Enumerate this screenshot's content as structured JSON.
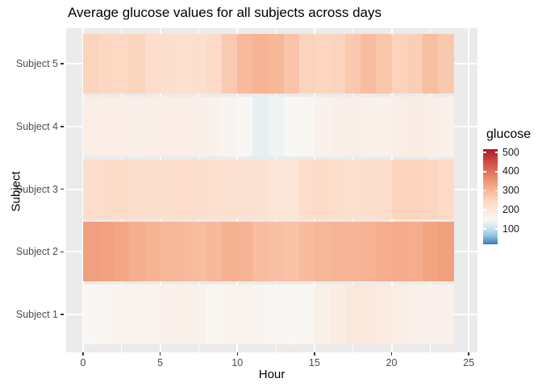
{
  "title": "Average glucose values for all subjects across days",
  "axes": {
    "x": {
      "label": "Hour",
      "tick_labels": [
        "0",
        "5",
        "10",
        "15",
        "20",
        "25"
      ],
      "tick_values": [
        0,
        5,
        10,
        15,
        20,
        25
      ]
    },
    "y": {
      "label": "Subject",
      "tick_labels": [
        "Subject 5",
        "Subject 4",
        "Subject 3",
        "Subject 2",
        "Subject 1"
      ]
    }
  },
  "legend": {
    "title": "glucose",
    "tick_labels": [
      "500",
      "400",
      "300",
      "200",
      "100"
    ],
    "tick_values": [
      500,
      400,
      300,
      200,
      100
    ]
  },
  "colors": {
    "panel_background": "#EBEBEB",
    "gridline": "#FFFFFF",
    "tick_mark": "#333333",
    "axis_text": "#4D4D4D",
    "high_red": "#B2182B",
    "low_blue": "#3E79B4"
  },
  "chart_data": {
    "type": "heatmap",
    "title": "Average glucose values for all subjects across days",
    "xlabel": "Hour",
    "ylabel": "Subject",
    "x_hours": [
      0,
      1,
      2,
      3,
      4,
      5,
      6,
      7,
      8,
      9,
      10,
      11,
      12,
      13,
      14,
      15,
      16,
      17,
      18,
      19,
      20,
      21,
      22,
      23
    ],
    "x_axis_range": [
      0,
      25
    ],
    "tile_span_hours": [
      0,
      24
    ],
    "rows_top_to_bottom": [
      {
        "subject": "Subject 5",
        "values": [
          252,
          246,
          245,
          250,
          232,
          228,
          220,
          225,
          240,
          268,
          295,
          305,
          300,
          278,
          252,
          248,
          252,
          270,
          290,
          275,
          252,
          262,
          288,
          272
        ]
      },
      {
        "subject": "Subject 4",
        "values": [
          182,
          180,
          178,
          176,
          178,
          180,
          178,
          175,
          168,
          160,
          152,
          132,
          140,
          150,
          158,
          168,
          175,
          178,
          172,
          170,
          182,
          185,
          178,
          172
        ]
      },
      {
        "subject": "Subject 3",
        "values": [
          230,
          234,
          236,
          228,
          226,
          228,
          230,
          226,
          222,
          220,
          216,
          218,
          210,
          205,
          232,
          238,
          230,
          222,
          226,
          232,
          250,
          253,
          248,
          240
        ]
      },
      {
        "subject": "Subject 2",
        "values": [
          338,
          334,
          326,
          314,
          305,
          300,
          296,
          292,
          296,
          310,
          306,
          292,
          286,
          283,
          293,
          299,
          304,
          301,
          309,
          316,
          320,
          316,
          332,
          335
        ]
      },
      {
        "subject": "Subject 1",
        "values": [
          152,
          158,
          162,
          160,
          165,
          170,
          172,
          168,
          158,
          162,
          165,
          160,
          156,
          152,
          156,
          172,
          186,
          198,
          200,
          190,
          178,
          170,
          168,
          172
        ]
      }
    ],
    "color_scale": {
      "name": "RdBu diverging (red = high glucose, blue = low glucose, white near 150)",
      "legend_domain": [
        20,
        517
      ],
      "legend_ticks": [
        100,
        200,
        300,
        400,
        500
      ],
      "stops": [
        [
          20,
          "#3E79B4"
        ],
        [
          65,
          "#92C5DE"
        ],
        [
          108,
          "#D1E5F0"
        ],
        [
          150,
          "#F9F7F5"
        ],
        [
          240,
          "#FDDBC7"
        ],
        [
          330,
          "#F4A582"
        ],
        [
          425,
          "#D6604D"
        ],
        [
          517,
          "#B2182B"
        ]
      ]
    },
    "legend_position": "right",
    "grid": true
  }
}
